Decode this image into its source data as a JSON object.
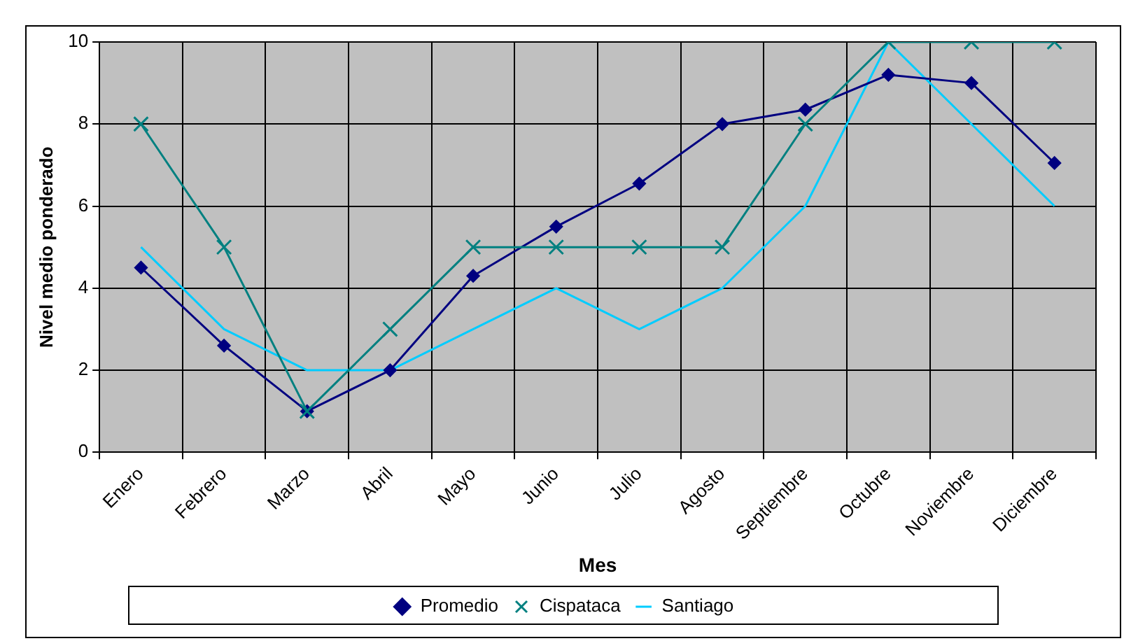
{
  "chart_data": {
    "type": "line",
    "xlabel": "Mes",
    "ylabel": "Nivel medio ponderado",
    "categories": [
      "Enero",
      "Febrero",
      "Marzo",
      "Abril",
      "Mayo",
      "Junio",
      "Julio",
      "Agosto",
      "Septiembre",
      "Octubre",
      "Noviembre",
      "Diciembre"
    ],
    "series": [
      {
        "name": "Promedio",
        "color": "#000080",
        "marker": "diamond",
        "values": [
          4.5,
          2.6,
          1.0,
          2.0,
          4.3,
          5.5,
          6.55,
          8.0,
          8.35,
          9.2,
          9.0,
          7.05
        ]
      },
      {
        "name": "Cispataca",
        "color": "#008080",
        "marker": "cross",
        "values": [
          8,
          5,
          1,
          3,
          5,
          5,
          5,
          5,
          8,
          10,
          10,
          10
        ]
      },
      {
        "name": "Santiago",
        "color": "#00ccff",
        "marker": "none",
        "values": [
          5,
          3,
          2,
          2,
          3,
          4,
          3,
          4,
          6,
          10,
          8,
          6
        ]
      }
    ],
    "ylim": [
      0,
      10
    ],
    "yticks": [
      0,
      2,
      4,
      6,
      8,
      10
    ],
    "grid": true,
    "legend": "bottom"
  }
}
